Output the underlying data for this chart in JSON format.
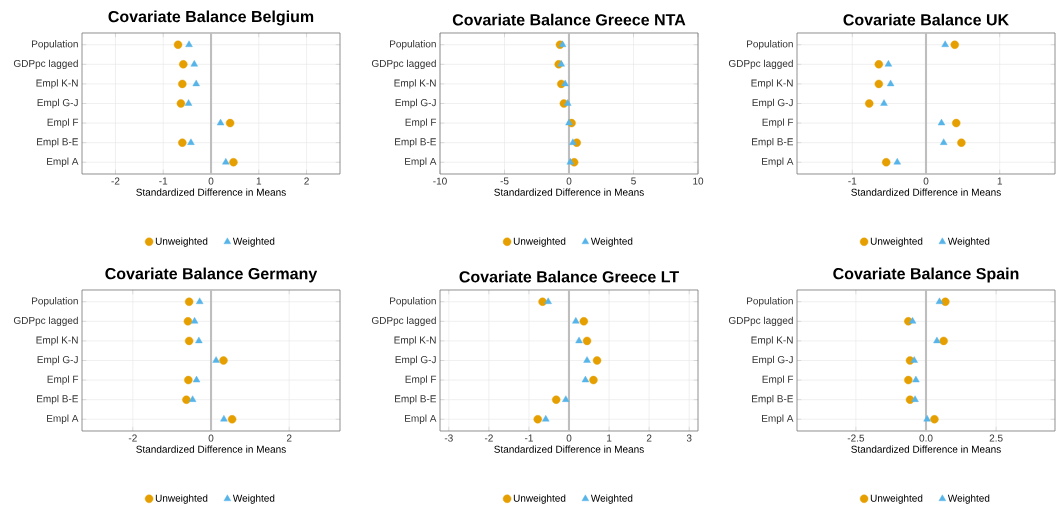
{
  "chart_data": [
    {
      "type": "scatter",
      "title": "Covariate Balance Belgium",
      "xlabel": "Standardized Difference in Means",
      "orientation": "horizontal",
      "categories": [
        "Population",
        "GDPpc lagged",
        "Empl K-N",
        "Empl G-J",
        "Empl F",
        "Empl B-E",
        "Empl A"
      ],
      "series": [
        {
          "name": "Unweighted",
          "color": "#e69f00",
          "marker": "circle",
          "values": [
            -0.69,
            -0.58,
            -0.6,
            -0.63,
            0.4,
            -0.6,
            0.47
          ]
        },
        {
          "name": "Weighted",
          "color": "#56b4e9",
          "marker": "triangle",
          "values": [
            -0.46,
            -0.35,
            -0.31,
            -0.47,
            0.2,
            -0.42,
            0.31
          ]
        }
      ],
      "xlim": [
        -2.7,
        2.7
      ],
      "xticks": [
        -2,
        -1,
        0,
        1,
        2
      ],
      "grid": true,
      "legend": "bottom",
      "ref_lines": [
        {
          "axis": "x",
          "value": 0,
          "color": "#bebebe"
        }
      ]
    },
    {
      "type": "scatter",
      "title": "Covariate Balance Greece NTA",
      "xlabel": "Standardized Difference in Means",
      "orientation": "horizontal",
      "categories": [
        "Population",
        "GDPpc lagged",
        "Empl K-N",
        "Empl G-J",
        "Empl F",
        "Empl B-E",
        "Empl A"
      ],
      "series": [
        {
          "name": "Unweighted",
          "color": "#e69f00",
          "marker": "circle",
          "values": [
            -0.7,
            -0.8,
            -0.6,
            -0.4,
            0.2,
            0.6,
            0.4
          ]
        },
        {
          "name": "Weighted",
          "color": "#56b4e9",
          "marker": "triangle",
          "values": [
            -0.5,
            -0.6,
            -0.3,
            -0.1,
            0,
            0.3,
            0.1
          ]
        }
      ],
      "xlim": [
        -10,
        10
      ],
      "xticks": [
        -10,
        -5,
        0,
        5,
        10
      ],
      "grid": true,
      "legend": "bottom",
      "ref_lines": [
        {
          "axis": "x",
          "value": 0,
          "color": "#bebebe"
        }
      ]
    },
    {
      "type": "scatter",
      "title": "Covariate Balance UK",
      "xlabel": "Standardized Difference in Means",
      "orientation": "horizontal",
      "categories": [
        "Population",
        "GDPpc lagged",
        "Empl K-N",
        "Empl G-J",
        "Empl F",
        "Empl B-E",
        "Empl A"
      ],
      "series": [
        {
          "name": "Unweighted",
          "color": "#e69f00",
          "marker": "circle",
          "values": [
            0.39,
            -0.64,
            -0.64,
            -0.77,
            0.41,
            0.48,
            -0.54
          ]
        },
        {
          "name": "Weighted",
          "color": "#56b4e9",
          "marker": "triangle",
          "values": [
            0.26,
            -0.51,
            -0.48,
            -0.57,
            0.21,
            0.24,
            -0.39
          ]
        }
      ],
      "xlim": [
        -1.75,
        1.75
      ],
      "xticks": [
        -1,
        0,
        1
      ],
      "grid": true,
      "legend": "bottom",
      "ref_lines": [
        {
          "axis": "x",
          "value": 0,
          "color": "#bebebe"
        }
      ]
    },
    {
      "type": "scatter",
      "title": "Covariate Balance Germany",
      "xlabel": "Standardized Difference in Means",
      "orientation": "horizontal",
      "categories": [
        "Population",
        "GDPpc lagged",
        "Empl K-N",
        "Empl G-J",
        "Empl F",
        "Empl B-E",
        "Empl A"
      ],
      "series": [
        {
          "name": "Unweighted",
          "color": "#e69f00",
          "marker": "circle",
          "values": [
            -0.56,
            -0.59,
            -0.56,
            0.32,
            -0.58,
            -0.63,
            0.54
          ]
        },
        {
          "name": "Weighted",
          "color": "#56b4e9",
          "marker": "triangle",
          "values": [
            -0.29,
            -0.42,
            -0.31,
            0.13,
            -0.37,
            -0.47,
            0.33
          ]
        }
      ],
      "xlim": [
        -3.3,
        3.3
      ],
      "xticks": [
        -2,
        0,
        2
      ],
      "grid": true,
      "legend": "bottom",
      "ref_lines": [
        {
          "axis": "x",
          "value": 0,
          "color": "#bebebe"
        }
      ]
    },
    {
      "type": "scatter",
      "title": "Covariate Balance Greece LT",
      "xlabel": "Standardized Difference in Means",
      "orientation": "horizontal",
      "categories": [
        "Population",
        "GDPpc lagged",
        "Empl K-N",
        "Empl G-J",
        "Empl F",
        "Empl B-E",
        "Empl A"
      ],
      "series": [
        {
          "name": "Unweighted",
          "color": "#e69f00",
          "marker": "circle",
          "values": [
            -0.66,
            0.37,
            0.45,
            0.7,
            0.61,
            -0.32,
            -0.78
          ]
        },
        {
          "name": "Weighted",
          "color": "#56b4e9",
          "marker": "triangle",
          "values": [
            -0.52,
            0.17,
            0.25,
            0.45,
            0.41,
            -0.08,
            -0.58
          ]
        }
      ],
      "xlim": [
        -3.22,
        3.22
      ],
      "xticks": [
        -3,
        -2,
        -1,
        0,
        1,
        2,
        3
      ],
      "grid": true,
      "legend": "bottom",
      "ref_lines": [
        {
          "axis": "x",
          "value": 0,
          "color": "#bebebe"
        }
      ]
    },
    {
      "type": "scatter",
      "title": "Covariate Balance Spain",
      "xlabel": "Standardized Difference in Means",
      "orientation": "horizontal",
      "categories": [
        "Population",
        "GDPpc lagged",
        "Empl K-N",
        "Empl G-J",
        "Empl F",
        "Empl B-E",
        "Empl A"
      ],
      "series": [
        {
          "name": "Unweighted",
          "color": "#e69f00",
          "marker": "circle",
          "values": [
            0.69,
            -0.63,
            0.63,
            -0.57,
            -0.63,
            -0.57,
            0.3
          ]
        },
        {
          "name": "Weighted",
          "color": "#56b4e9",
          "marker": "triangle",
          "values": [
            0.48,
            -0.48,
            0.39,
            -0.42,
            -0.36,
            -0.39,
            0.04
          ]
        }
      ],
      "xlim": [
        -4.6,
        4.6
      ],
      "xticks": [
        -2.5,
        {
          "value": 0,
          "label": "0.0"
        },
        2.5
      ],
      "grid": true,
      "legend": "bottom",
      "ref_lines": [
        {
          "axis": "x",
          "value": 0,
          "color": "#bebebe"
        }
      ]
    }
  ]
}
